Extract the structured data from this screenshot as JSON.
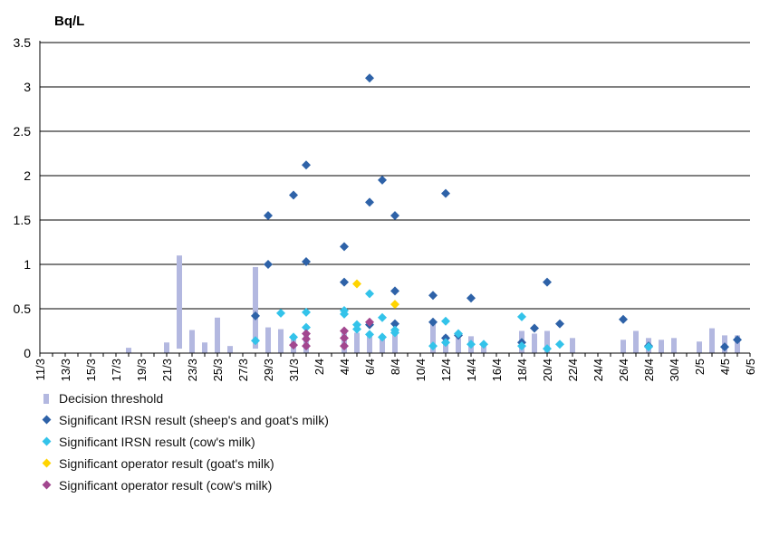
{
  "chart_data": {
    "type": "scatter",
    "ylabel": "Bq/L",
    "ylim": [
      0,
      3.5
    ],
    "yticks": [
      "0",
      "0.5",
      "1",
      "1.5",
      "2",
      "2.5",
      "3",
      "3.5"
    ],
    "x_dates": [
      "11/3",
      "12/3",
      "13/3",
      "14/3",
      "15/3",
      "16/3",
      "17/3",
      "18/3",
      "19/3",
      "20/3",
      "21/3",
      "22/3",
      "23/3",
      "24/3",
      "25/3",
      "26/3",
      "27/3",
      "28/3",
      "29/3",
      "30/3",
      "31/3",
      "1/4",
      "2/4",
      "3/4",
      "4/4",
      "5/4",
      "6/4",
      "7/4",
      "8/4",
      "9/4",
      "10/4",
      "11/4",
      "12/4",
      "13/4",
      "14/4",
      "15/4",
      "16/4",
      "17/4",
      "18/4",
      "19/4",
      "20/4",
      "21/4",
      "22/4",
      "23/4",
      "24/4",
      "25/4",
      "26/4",
      "27/4",
      "28/4",
      "29/4",
      "30/4",
      "1/5",
      "2/5",
      "3/5",
      "4/5",
      "5/5",
      "6/5"
    ],
    "xtick_labels": [
      "11/3",
      "13/3",
      "15/3",
      "17/3",
      "19/3",
      "21/3",
      "23/3",
      "25/3",
      "27/3",
      "29/3",
      "31/3",
      "2/4",
      "4/4",
      "6/4",
      "8/4",
      "10/4",
      "12/4",
      "14/4",
      "16/4",
      "18/4",
      "20/4",
      "22/4",
      "24/4",
      "26/4",
      "28/4",
      "30/4",
      "2/5",
      "4/5",
      "6/5"
    ],
    "grid": true,
    "colors": {
      "threshold": "#b3b8e0",
      "irsn_sheep_goat": "#2e62a8",
      "irsn_cow": "#33c3ea",
      "operator_goat": "#ffd400",
      "operator_cow": "#a2478f",
      "gridline": "#000000"
    },
    "series": [
      {
        "name": "Decision threshold",
        "kind": "bar",
        "points": [
          {
            "x": "18/3",
            "low": 0,
            "high": 0.06
          },
          {
            "x": "21/3",
            "low": 0,
            "high": 0.12
          },
          {
            "x": "22/3",
            "low": 0.05,
            "high": 1.1
          },
          {
            "x": "23/3",
            "low": 0,
            "high": 0.26
          },
          {
            "x": "24/3",
            "low": 0,
            "high": 0.12
          },
          {
            "x": "25/3",
            "low": 0,
            "high": 0.4
          },
          {
            "x": "26/3",
            "low": 0,
            "high": 0.08
          },
          {
            "x": "28/3",
            "low": 0.05,
            "high": 0.97
          },
          {
            "x": "29/3",
            "low": 0,
            "high": 0.29
          },
          {
            "x": "30/3",
            "low": 0,
            "high": 0.27
          },
          {
            "x": "31/3",
            "low": 0,
            "high": 0.2
          },
          {
            "x": "1/4",
            "low": 0,
            "high": 0.22
          },
          {
            "x": "4/4",
            "low": 0,
            "high": 0.25
          },
          {
            "x": "5/4",
            "low": 0,
            "high": 0.23
          },
          {
            "x": "6/4",
            "low": 0,
            "high": 0.2
          },
          {
            "x": "7/4",
            "low": 0,
            "high": 0.2
          },
          {
            "x": "8/4",
            "low": 0,
            "high": 0.22
          },
          {
            "x": "11/4",
            "low": 0,
            "high": 0.35
          },
          {
            "x": "12/4",
            "low": 0,
            "high": 0.2
          },
          {
            "x": "13/4",
            "low": 0,
            "high": 0.17
          },
          {
            "x": "14/4",
            "low": 0,
            "high": 0.19
          },
          {
            "x": "15/4",
            "low": 0,
            "high": 0.1
          },
          {
            "x": "18/4",
            "low": 0,
            "high": 0.25
          },
          {
            "x": "19/4",
            "low": 0,
            "high": 0.22
          },
          {
            "x": "20/4",
            "low": 0,
            "high": 0.25
          },
          {
            "x": "22/4",
            "low": 0,
            "high": 0.17
          },
          {
            "x": "26/4",
            "low": 0,
            "high": 0.15
          },
          {
            "x": "27/4",
            "low": 0,
            "high": 0.25
          },
          {
            "x": "28/4",
            "low": 0,
            "high": 0.17
          },
          {
            "x": "29/4",
            "low": 0,
            "high": 0.15
          },
          {
            "x": "30/4",
            "low": 0,
            "high": 0.17
          },
          {
            "x": "2/5",
            "low": 0,
            "high": 0.13
          },
          {
            "x": "3/5",
            "low": 0,
            "high": 0.28
          },
          {
            "x": "4/5",
            "low": 0,
            "high": 0.2
          },
          {
            "x": "5/5",
            "low": 0,
            "high": 0.2
          }
        ]
      },
      {
        "name": "Significant IRSN result (sheep's and goat's milk)",
        "kind": "marker",
        "points": [
          {
            "x": "28/3",
            "y": 0.42
          },
          {
            "x": "29/3",
            "y": 1.55
          },
          {
            "x": "29/3",
            "y": 1.0
          },
          {
            "x": "31/3",
            "y": 1.78
          },
          {
            "x": "1/4",
            "y": 2.12
          },
          {
            "x": "1/4",
            "y": 1.03
          },
          {
            "x": "4/4",
            "y": 1.2
          },
          {
            "x": "4/4",
            "y": 0.8
          },
          {
            "x": "6/4",
            "y": 3.1
          },
          {
            "x": "6/4",
            "y": 1.7
          },
          {
            "x": "6/4",
            "y": 0.32
          },
          {
            "x": "7/4",
            "y": 1.95
          },
          {
            "x": "8/4",
            "y": 1.55
          },
          {
            "x": "8/4",
            "y": 0.7
          },
          {
            "x": "8/4",
            "y": 0.33
          },
          {
            "x": "11/4",
            "y": 0.65
          },
          {
            "x": "11/4",
            "y": 0.35
          },
          {
            "x": "12/4",
            "y": 1.8
          },
          {
            "x": "12/4",
            "y": 0.17
          },
          {
            "x": "13/4",
            "y": 0.2
          },
          {
            "x": "14/4",
            "y": 0.62
          },
          {
            "x": "18/4",
            "y": 0.12
          },
          {
            "x": "19/4",
            "y": 0.28
          },
          {
            "x": "20/4",
            "y": 0.8
          },
          {
            "x": "21/4",
            "y": 0.33
          },
          {
            "x": "26/4",
            "y": 0.38
          },
          {
            "x": "28/4",
            "y": 0.08
          },
          {
            "x": "4/5",
            "y": 0.07
          },
          {
            "x": "5/5",
            "y": 0.15
          }
        ]
      },
      {
        "name": "Significant IRSN result (cow's milk)",
        "kind": "marker",
        "points": [
          {
            "x": "28/3",
            "y": 0.14
          },
          {
            "x": "30/3",
            "y": 0.45
          },
          {
            "x": "31/3",
            "y": 0.18
          },
          {
            "x": "1/4",
            "y": 0.46
          },
          {
            "x": "1/4",
            "y": 0.29
          },
          {
            "x": "4/4",
            "y": 0.48
          },
          {
            "x": "4/4",
            "y": 0.44
          },
          {
            "x": "5/4",
            "y": 0.32
          },
          {
            "x": "5/4",
            "y": 0.27
          },
          {
            "x": "6/4",
            "y": 0.67
          },
          {
            "x": "6/4",
            "y": 0.21
          },
          {
            "x": "7/4",
            "y": 0.4
          },
          {
            "x": "7/4",
            "y": 0.18
          },
          {
            "x": "8/4",
            "y": 0.26
          },
          {
            "x": "8/4",
            "y": 0.23
          },
          {
            "x": "11/4",
            "y": 0.08
          },
          {
            "x": "12/4",
            "y": 0.36
          },
          {
            "x": "12/4",
            "y": 0.12
          },
          {
            "x": "13/4",
            "y": 0.22
          },
          {
            "x": "14/4",
            "y": 0.1
          },
          {
            "x": "15/4",
            "y": 0.1
          },
          {
            "x": "18/4",
            "y": 0.41
          },
          {
            "x": "18/4",
            "y": 0.08
          },
          {
            "x": "20/4",
            "y": 0.05
          },
          {
            "x": "21/4",
            "y": 0.1
          },
          {
            "x": "28/4",
            "y": 0.07
          }
        ]
      },
      {
        "name": "Significant operator result (goat's milk)",
        "kind": "marker",
        "points": [
          {
            "x": "5/4",
            "y": 0.78
          },
          {
            "x": "8/4",
            "y": 0.55
          }
        ]
      },
      {
        "name": "Significant operator result (cow's milk)",
        "kind": "marker",
        "points": [
          {
            "x": "31/3",
            "y": 0.09
          },
          {
            "x": "1/4",
            "y": 0.22
          },
          {
            "x": "1/4",
            "y": 0.16
          },
          {
            "x": "1/4",
            "y": 0.08
          },
          {
            "x": "4/4",
            "y": 0.25
          },
          {
            "x": "4/4",
            "y": 0.17
          },
          {
            "x": "4/4",
            "y": 0.08
          },
          {
            "x": "6/4",
            "y": 0.35
          }
        ]
      }
    ],
    "legend": {
      "placement": "bottom-left",
      "items": [
        {
          "label": "Decision threshold",
          "symbol": "bar",
          "color": "#b3b8e0"
        },
        {
          "label": "Significant IRSN result (sheep's and goat's milk)",
          "symbol": "diamond",
          "color": "#2e62a8"
        },
        {
          "label": "Significant IRSN result (cow's milk)",
          "symbol": "diamond",
          "color": "#33c3ea"
        },
        {
          "label": "Significant operator result (goat's milk)",
          "symbol": "diamond",
          "color": "#ffd400"
        },
        {
          "label": "Significant operator result (cow's milk)",
          "symbol": "diamond",
          "color": "#a2478f"
        }
      ]
    }
  }
}
